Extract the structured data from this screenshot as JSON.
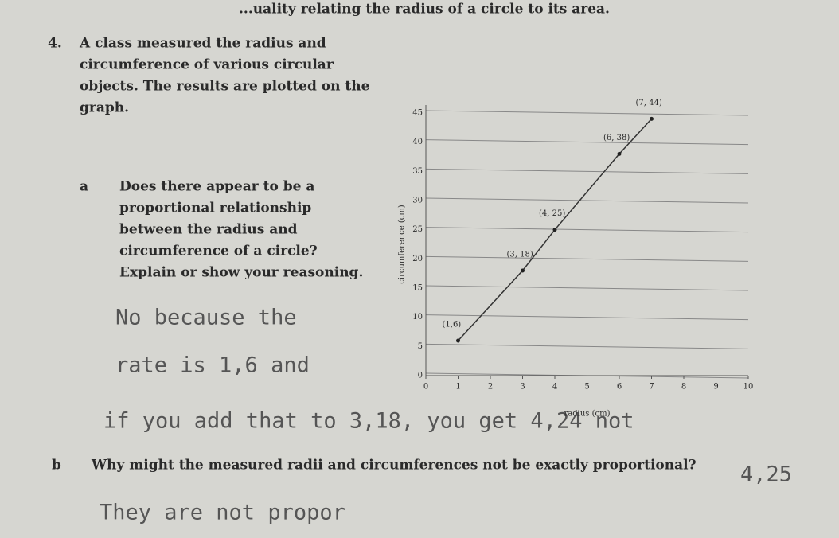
{
  "header": {
    "title": "...uality relating the radius of a circle to its area."
  },
  "question": {
    "number": "4.",
    "text": [
      "A class measured the radius and",
      "circumference of various circular",
      "objects. The results are plotted on the",
      "graph."
    ]
  },
  "part_a": {
    "letter": "a",
    "text": [
      "Does there appear to be a",
      "proportional relationship",
      "between the radius and",
      "circumference of a circle?",
      "Explain or show your reasoning."
    ]
  },
  "answer_a": [
    "No because the",
    "rate is 1,6 and",
    "if you add that to 3,18, you get 4,24 not",
    "4,25"
  ],
  "part_b": {
    "letter": "b",
    "text": "Why might the measured radii and circumferences not be exactly proportional?"
  },
  "answer_b": "They are not propor",
  "chart_data": {
    "type": "scatter",
    "x_label": "radius (cm)",
    "y_label": "circumference (cm)",
    "x": [
      1,
      3,
      4,
      6,
      7
    ],
    "values": [
      6,
      18,
      25,
      38,
      44
    ],
    "value_labels": [
      "(1,6)",
      "(3, 18)",
      "(4, 25)",
      "(6, 38)",
      "(7, 44)"
    ],
    "color": "#222",
    "xlim": [
      0,
      10
    ],
    "ylim": [
      0,
      45
    ],
    "xticks": [
      0,
      1,
      2,
      3,
      4,
      5,
      6,
      7,
      8,
      9,
      10
    ],
    "yticks": [
      0,
      5,
      10,
      15,
      20,
      25,
      30,
      35,
      40,
      45
    ],
    "grid": true
  }
}
